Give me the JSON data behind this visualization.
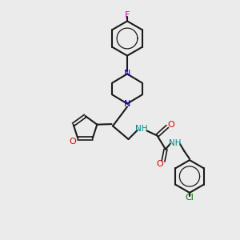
{
  "background_color": "#ebebeb",
  "bond_color": "#1a1a1a",
  "N_color": "#0000ee",
  "O_color": "#dd0000",
  "F_color": "#cc00cc",
  "Cl_color": "#007700",
  "NH_color": "#008888",
  "figsize": [
    3.0,
    3.0
  ],
  "dpi": 100,
  "xlim": [
    0,
    10
  ],
  "ylim": [
    0,
    10
  ]
}
